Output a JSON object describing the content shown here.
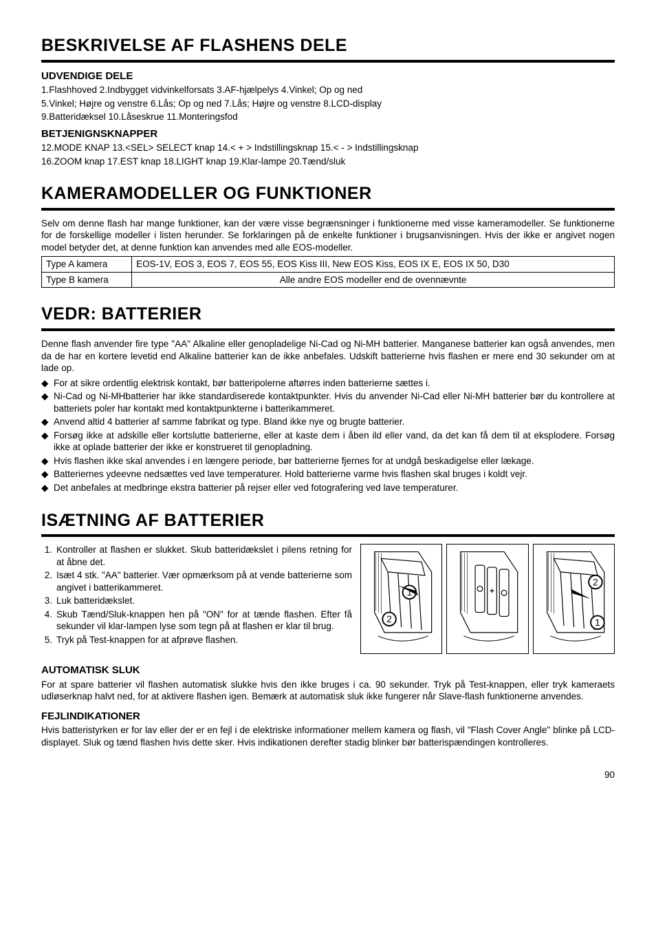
{
  "section_parts": {
    "title": "BESKRIVELSE AF FLASHENS DELE",
    "sub1": "UDVENDIGE DELE",
    "line1": "1.Flashhoved   2.Indbygget vidvinkelforsats   3.AF-hjælpelys    4.Vinkel; Op og ned",
    "line2": "5.Vinkel; Højre og venstre   6.Lås; Op og ned   7.Lås; Højre og venstre   8.LCD-display",
    "line3": "9.Batteridæksel   10.Låseskrue   11.Monteringsfod",
    "sub2": "BETJENIGNSKNAPPER",
    "line4": "12.MODE KNAP   13.<SEL> SELECT knap   14.< + > Indstillingsknap   15.< - > Indstillingsknap",
    "line5": "16.ZOOM knap   17.EST knap   18.LIGHT knap   19.Klar-lampe   20.Tænd/sluk"
  },
  "section_camera": {
    "title": "KAMERAMODELLER OG FUNKTIONER",
    "intro": "Selv om denne flash har mange funktioner, kan der være visse begrænsninger i funktionerne med visse kameramodeller. Se funktionerne for de forskellige modeller i listen herunder. Se forklaringen på de enkelte funktioner i brugsanvisningen. Hvis der ikke er angivet nogen model betyder det, at denne funktion kan anvendes med alle EOS-modeller.",
    "rowA_label": "Type A kamera",
    "rowA_value": "EOS-1V, EOS 3, EOS 7, EOS 55, EOS Kiss III, New EOS Kiss, EOS IX E, EOS IX 50, D30",
    "rowB_label": "Type B kamera",
    "rowB_value": "Alle andre  EOS modeller end de ovennævnte"
  },
  "section_batt": {
    "title": "VEDR: BATTERIER",
    "intro": "Denne flash anvender fire type \"AA\" Alkaline eller genopladelige Ni-Cad og Ni-MH batterier. Manganese batterier kan også anvendes, men da de har en kortere levetid end Alkaline batterier kan de ikke anbefales. Udskift batterierne hvis flashen er mere end 30 sekunder om at lade op.",
    "bullets": [
      "For at sikre ordentlig elektrisk kontakt, bør batteripolerne aftørres inden batterierne sættes i.",
      "Ni-Cad og Ni-MHbatterier har ikke standardiserede kontaktpunkter. Hvis du anvender Ni-Cad eller Ni-MH batterier bør du kontrollere at batteriets poler har kontakt med kontaktpunkterne i batterikammeret.",
      "Anvend altid 4 batterier af samme fabrikat og type. Bland ikke nye og brugte batterier.",
      "Forsøg ikke at adskille eller kortslutte batterierne, eller at kaste dem i åben ild eller vand, da det kan få dem til at eksplodere. Forsøg ikke at oplade batterier der ikke er konstrueret til genopladning.",
      "Hvis flashen ikke skal anvendes i en længere periode, bør batterierne fjernes for at undgå beskadigelse eller lækage.",
      "Batteriernes ydeevne nedsættes ved lave temperaturer. Hold batterierne varme hvis flashen skal bruges i koldt vejr.",
      "Det anbefales at medbringe ekstra batterier på rejser eller ved fotografering ved lave temperaturer."
    ],
    "bullet_marker": "◆"
  },
  "section_insert": {
    "title": "ISÆTNING AF BATTERIER",
    "steps": [
      "Kontroller at flashen er slukket. Skub batteridækslet i pilens retning for at åbne det.",
      "Isæt 4 stk. \"AA\" batterier. Vær opmærksom på at vende batterierne som angivet i batterikammeret.",
      "Luk batteridækslet.",
      "Skub Tænd/Sluk-knappen hen på \"ON\" for at tænde flashen. Efter få sekunder vil klar-lampen lyse som tegn på at flashen er klar til brug.",
      "Tryk på Test-knappen for at afprøve flashen."
    ],
    "diagram_badge_1": "1",
    "diagram_badge_2": "2"
  },
  "section_auto": {
    "title": "AUTOMATISK SLUK",
    "text": "For at spare batterier vil flashen automatisk slukke hvis den ikke bruges i ca. 90 sekunder. Tryk på Test-knappen, eller tryk kameraets udløserknap halvt ned, for at aktivere flashen igen. Bemærk at automatisk sluk ikke fungerer når Slave-flash funktionerne anvendes."
  },
  "section_err": {
    "title": "FEJLINDIKATIONER",
    "text": "Hvis batteristyrken er for lav eller der er en fejl i de elektriske informationer mellem kamera og flash, vil \"Flash Cover Angle\" blinke på LCD-displayet. Sluk og tænd flashen hvis dette sker. Hvis indikationen derefter stadig blinker bør batterispændingen kontrolleres."
  },
  "page_number": "90",
  "colors": {
    "text": "#000000",
    "background": "#ffffff",
    "rule": "#000000"
  },
  "typography": {
    "h1_fontsize_pt": 19,
    "h2_fontsize_pt": 11,
    "body_fontsize_pt": 10,
    "font_family": "Arial, Helvetica, sans-serif"
  }
}
